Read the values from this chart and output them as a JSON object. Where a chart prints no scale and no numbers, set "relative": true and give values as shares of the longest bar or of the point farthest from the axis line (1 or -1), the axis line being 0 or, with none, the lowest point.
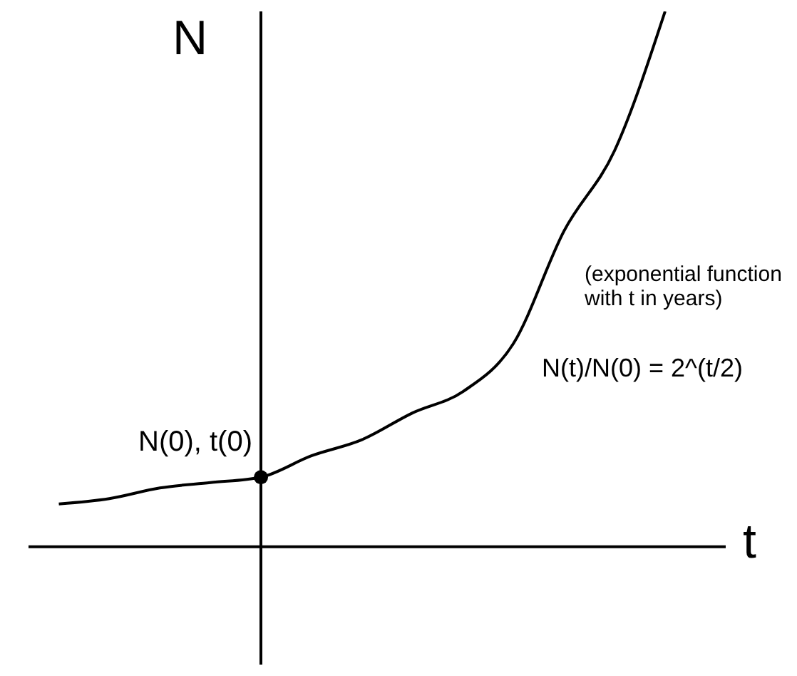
{
  "chart_data": {
    "type": "line",
    "relative": true,
    "xlabel": "t",
    "ylabel": "N",
    "categories": [
      null,
      null,
      null,
      null,
      null,
      null,
      null,
      null,
      null,
      null,
      null,
      null,
      null
    ],
    "series": [
      {
        "color": "#000000",
        "values": [
          0.08,
          0.09,
          0.11,
          0.12,
          0.13,
          0.17,
          0.2,
          0.25,
          0.29,
          0.38,
          0.59,
          0.74,
          1
        ]
      }
    ],
    "annotations": [
      {
        "text": "N(0), t(0)",
        "y": 0.13
      },
      "(exponential function with t in years)",
      "N(t)/N(0) = 2^(t/2)"
    ],
    "grid": false,
    "legend": false
  }
}
